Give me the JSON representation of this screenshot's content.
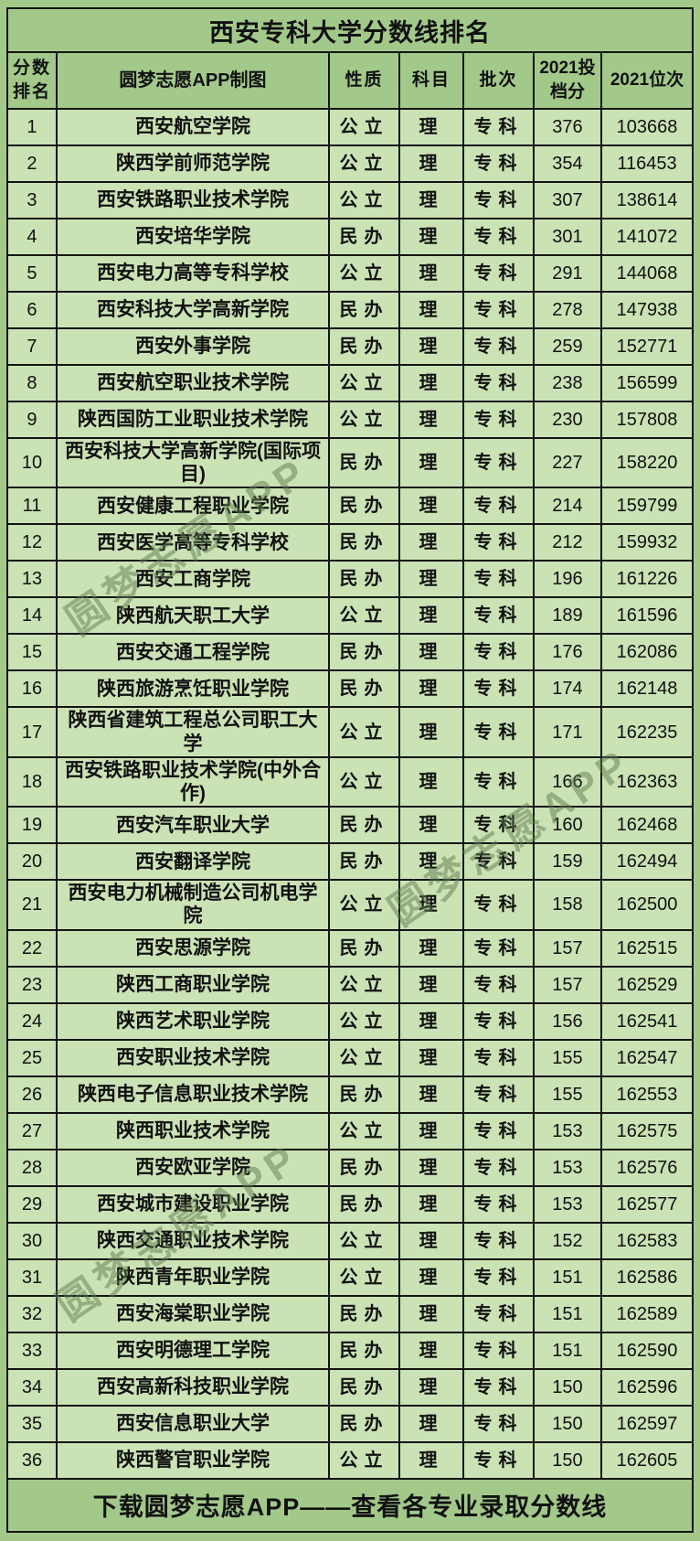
{
  "title": "西安专科大学分数线排名",
  "watermark": {
    "text": "圆梦志愿APP"
  },
  "footer": {
    "text": "下载圆梦志愿APP——查看各专业录取分数线"
  },
  "colors": {
    "canvas_green": "#a3c98a",
    "cell_green": "#cbe2b5",
    "border": "#141414",
    "text": "#111111",
    "watermark_green": "#5f7a50"
  },
  "chart_data": {
    "type": "table",
    "title": "西安专科大学分数线排名",
    "columns": [
      "分数排名",
      "圆梦志愿APP制图",
      "性质",
      "科目",
      "批次",
      "2021投档分",
      "2021位次"
    ],
    "rows": [
      [
        "1",
        "西安航空学院",
        "公立",
        "理",
        "专科",
        "376",
        "103668"
      ],
      [
        "2",
        "陕西学前师范学院",
        "公立",
        "理",
        "专科",
        "354",
        "116453"
      ],
      [
        "3",
        "西安铁路职业技术学院",
        "公立",
        "理",
        "专科",
        "307",
        "138614"
      ],
      [
        "4",
        "西安培华学院",
        "民办",
        "理",
        "专科",
        "301",
        "141072"
      ],
      [
        "5",
        "西安电力高等专科学校",
        "公立",
        "理",
        "专科",
        "291",
        "144068"
      ],
      [
        "6",
        "西安科技大学高新学院",
        "民办",
        "理",
        "专科",
        "278",
        "147938"
      ],
      [
        "7",
        "西安外事学院",
        "民办",
        "理",
        "专科",
        "259",
        "152771"
      ],
      [
        "8",
        "西安航空职业技术学院",
        "公立",
        "理",
        "专科",
        "238",
        "156599"
      ],
      [
        "9",
        "陕西国防工业职业技术学院",
        "公立",
        "理",
        "专科",
        "230",
        "157808"
      ],
      [
        "10",
        "西安科技大学高新学院(国际项目)",
        "民办",
        "理",
        "专科",
        "227",
        "158220"
      ],
      [
        "11",
        "西安健康工程职业学院",
        "民办",
        "理",
        "专科",
        "214",
        "159799"
      ],
      [
        "12",
        "西安医学高等专科学校",
        "民办",
        "理",
        "专科",
        "212",
        "159932"
      ],
      [
        "13",
        "西安工商学院",
        "民办",
        "理",
        "专科",
        "196",
        "161226"
      ],
      [
        "14",
        "陕西航天职工大学",
        "公立",
        "理",
        "专科",
        "189",
        "161596"
      ],
      [
        "15",
        "西安交通工程学院",
        "民办",
        "理",
        "专科",
        "176",
        "162086"
      ],
      [
        "16",
        "陕西旅游烹饪职业学院",
        "民办",
        "理",
        "专科",
        "174",
        "162148"
      ],
      [
        "17",
        "陕西省建筑工程总公司职工大学",
        "公立",
        "理",
        "专科",
        "171",
        "162235"
      ],
      [
        "18",
        "西安铁路职业技术学院(中外合作)",
        "公立",
        "理",
        "专科",
        "166",
        "162363"
      ],
      [
        "19",
        "西安汽车职业大学",
        "民办",
        "理",
        "专科",
        "160",
        "162468"
      ],
      [
        "20",
        "西安翻译学院",
        "民办",
        "理",
        "专科",
        "159",
        "162494"
      ],
      [
        "21",
        "西安电力机械制造公司机电学院",
        "公立",
        "理",
        "专科",
        "158",
        "162500"
      ],
      [
        "22",
        "西安思源学院",
        "民办",
        "理",
        "专科",
        "157",
        "162515"
      ],
      [
        "23",
        "陕西工商职业学院",
        "公立",
        "理",
        "专科",
        "157",
        "162529"
      ],
      [
        "24",
        "陕西艺术职业学院",
        "公立",
        "理",
        "专科",
        "156",
        "162541"
      ],
      [
        "25",
        "西安职业技术学院",
        "公立",
        "理",
        "专科",
        "155",
        "162547"
      ],
      [
        "26",
        "陕西电子信息职业技术学院",
        "民办",
        "理",
        "专科",
        "155",
        "162553"
      ],
      [
        "27",
        "陕西职业技术学院",
        "公立",
        "理",
        "专科",
        "153",
        "162575"
      ],
      [
        "28",
        "西安欧亚学院",
        "民办",
        "理",
        "专科",
        "153",
        "162576"
      ],
      [
        "29",
        "西安城市建设职业学院",
        "民办",
        "理",
        "专科",
        "153",
        "162577"
      ],
      [
        "30",
        "陕西交通职业技术学院",
        "公立",
        "理",
        "专科",
        "152",
        "162583"
      ],
      [
        "31",
        "陕西青年职业学院",
        "公立",
        "理",
        "专科",
        "151",
        "162586"
      ],
      [
        "32",
        "西安海棠职业学院",
        "民办",
        "理",
        "专科",
        "151",
        "162589"
      ],
      [
        "33",
        "西安明德理工学院",
        "民办",
        "理",
        "专科",
        "151",
        "162590"
      ],
      [
        "34",
        "西安高新科技职业学院",
        "民办",
        "理",
        "专科",
        "150",
        "162596"
      ],
      [
        "35",
        "西安信息职业大学",
        "民办",
        "理",
        "专科",
        "150",
        "162597"
      ],
      [
        "36",
        "陕西警官职业学院",
        "公立",
        "理",
        "专科",
        "150",
        "162605"
      ]
    ]
  }
}
